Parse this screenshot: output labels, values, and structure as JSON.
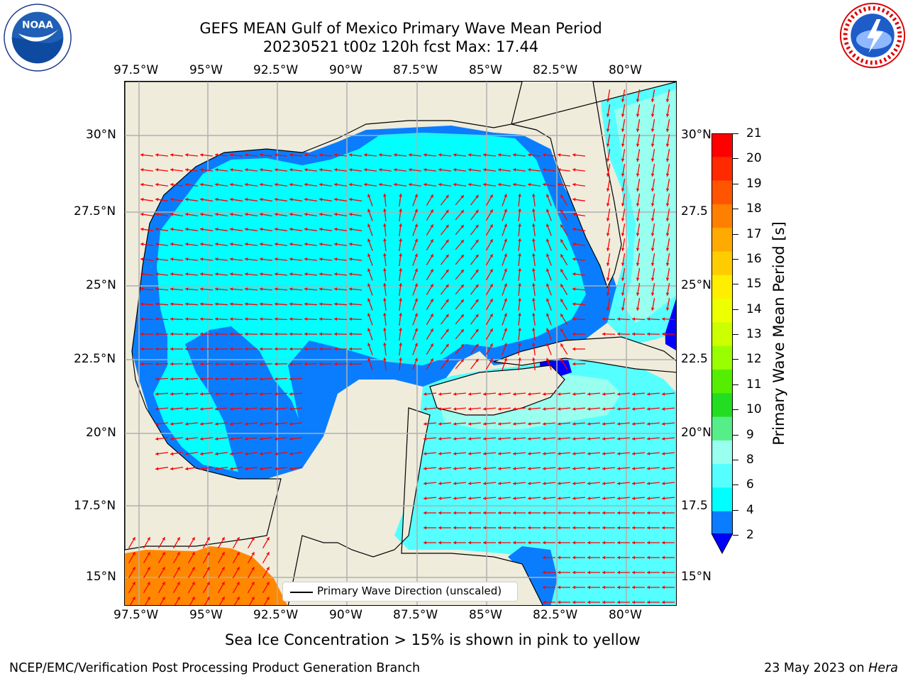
{
  "title": {
    "line1": "GEFS MEAN Gulf of Mexico Primary Wave Mean Period",
    "line2": "20230521 t00z 120h fcst   Max: 17.44"
  },
  "logos": {
    "left": {
      "name": "noaa-logo",
      "text": "NOAA"
    },
    "right": {
      "name": "nws-logo",
      "text": "NATIONAL WEATHER SERVICE"
    }
  },
  "axes": {
    "lon_ticks": [
      "97.5°W",
      "95°W",
      "92.5°W",
      "90°W",
      "87.5°W",
      "85°W",
      "82.5°W",
      "80°W"
    ],
    "lat_ticks_left": [
      "30°N",
      "27.5°N",
      "25°N",
      "22.5°N",
      "20°N",
      "17.5°N",
      "15°N"
    ],
    "lat_ticks_right": [
      "30°N",
      "27.5",
      "25°N",
      "22.5",
      "20°N",
      "17.5",
      "15°N"
    ]
  },
  "colorbar": {
    "label": "Primary Wave Mean Period [s]",
    "ticks": [
      "21",
      "20",
      "19",
      "18",
      "17",
      "16",
      "15",
      "14",
      "13",
      "12",
      "11",
      "10",
      "9",
      "8",
      "6",
      "4",
      "2"
    ],
    "colors": [
      "#ff0000",
      "#ff2a00",
      "#ff5500",
      "#ff7f00",
      "#ffaa00",
      "#ffcc00",
      "#ffee00",
      "#eeff00",
      "#ccff00",
      "#99ff00",
      "#55ee00",
      "#22dd22",
      "#55ee88",
      "#99ffee",
      "#55ffff",
      "#00ffff",
      "#0a7dff"
    ],
    "under_color": "#0000ff"
  },
  "legend": {
    "label": "Primary Wave Direction (unscaled)"
  },
  "note": "Sea Ice Concentration > 15% is shown in pink to yellow",
  "footer": {
    "left": "NCEP/EMC/Verification Post Processing Product Generation Branch",
    "right_prefix": "23 May 2023 on ",
    "right_host": "Hera"
  },
  "map_colors": {
    "land": "#efecdc",
    "sea_4_6": "#00ffff",
    "sea_6_8": "#55ffff",
    "sea_8_9": "#99ffee",
    "sea_2_4": "#0a7dff",
    "sea_lt_2": "#0000ff",
    "pacific_17_18": "#ff8800",
    "arrow": "#ff0000",
    "grid": "#b0b0b0"
  }
}
